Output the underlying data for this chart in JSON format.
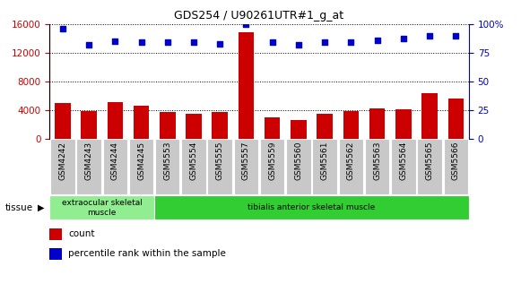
{
  "title": "GDS254 / U90261UTR#1_g_at",
  "categories": [
    "GSM4242",
    "GSM4243",
    "GSM4244",
    "GSM4245",
    "GSM5553",
    "GSM5554",
    "GSM5555",
    "GSM5557",
    "GSM5559",
    "GSM5560",
    "GSM5561",
    "GSM5562",
    "GSM5563",
    "GSM5564",
    "GSM5565",
    "GSM5566"
  ],
  "bar_values": [
    5000,
    3800,
    5100,
    4600,
    3700,
    3400,
    3750,
    14800,
    2900,
    2600,
    3500,
    3800,
    4150,
    4050,
    6300,
    5600
  ],
  "dot_values": [
    96,
    82,
    85,
    84,
    84,
    84,
    83,
    100,
    84,
    82,
    84,
    84,
    86,
    87,
    90,
    90
  ],
  "bar_color": "#cc0000",
  "dot_color": "#0000cc",
  "left_yaxis_color": "#cc0000",
  "right_yaxis_color": "#0000cc",
  "ylim_left": [
    0,
    16000
  ],
  "ylim_right": [
    0,
    100
  ],
  "left_yticks": [
    0,
    4000,
    8000,
    12000,
    16000
  ],
  "right_yticks": [
    0,
    25,
    50,
    75,
    100
  ],
  "background_color": "#ffffff",
  "tick_bg_color": "#c8c8c8",
  "tissue_groups": [
    {
      "label": "extraocular skeletal\nmuscle",
      "start": 0,
      "end": 4,
      "color": "#90ee90"
    },
    {
      "label": "tibialis anterior skeletal muscle",
      "start": 4,
      "end": 16,
      "color": "#32cd32"
    }
  ],
  "tissue_label": "tissue",
  "legend_count_label": "count",
  "legend_percentile_label": "percentile rank within the sample",
  "grid_linestyle": "dotted"
}
